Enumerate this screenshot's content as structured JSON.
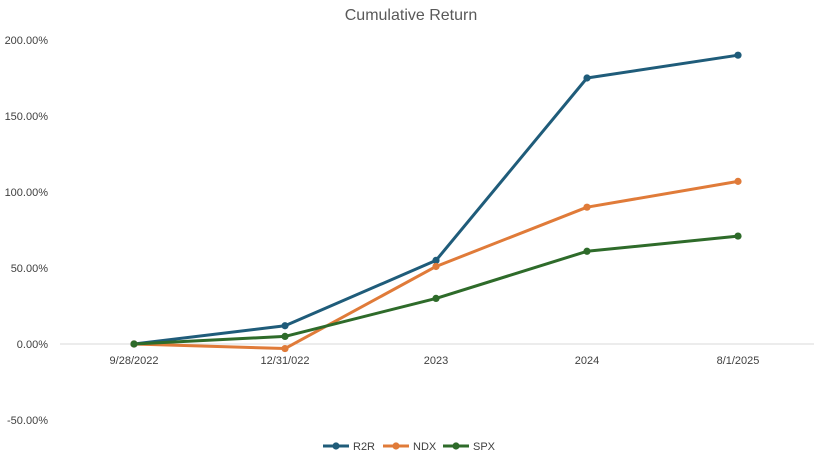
{
  "chart_data": {
    "type": "line",
    "title": "Cumulative Return",
    "xlabel": "",
    "ylabel": "",
    "categories": [
      "9/28/2022",
      "12/31/022",
      "2023",
      "2024",
      "8/1/2025"
    ],
    "y_ticks": [
      "200.00%",
      "150.00%",
      "100.00%",
      "50.00%",
      "0.00%",
      "-50.00%"
    ],
    "ylim": [
      -50,
      200
    ],
    "grid": false,
    "legend_position": "bottom",
    "series": [
      {
        "name": "R2R",
        "color": "#1f5c7a",
        "values": [
          0,
          12,
          55,
          175,
          190
        ]
      },
      {
        "name": "NDX",
        "color": "#e07b39",
        "values": [
          0,
          -3,
          51,
          90,
          107
        ]
      },
      {
        "name": "SPX",
        "color": "#2e6b2a",
        "values": [
          0,
          5,
          30,
          61,
          71
        ]
      }
    ]
  }
}
